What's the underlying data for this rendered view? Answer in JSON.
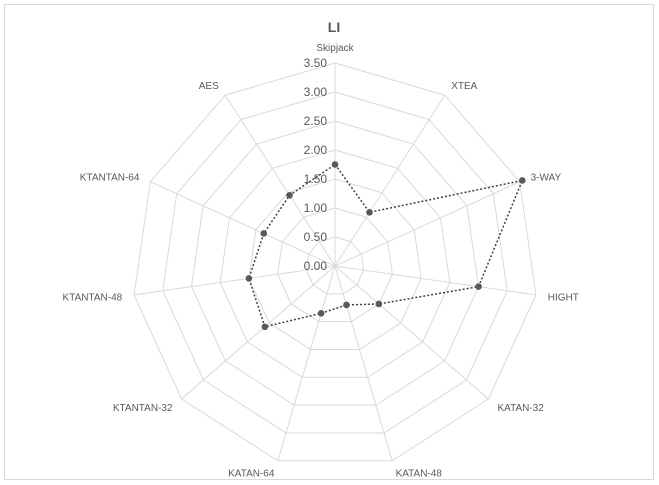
{
  "chart_data": {
    "type": "radar",
    "title": "LI",
    "categories": [
      "Skipjack",
      "XTEA",
      "3-WAY",
      "HIGHT",
      "KATAN-32",
      "KATAN-48",
      "KATAN-64",
      "KTANTAN-32",
      "KTANTAN-48",
      "KTANTAN-64",
      "AES"
    ],
    "series": [
      {
        "values": [
          1.75,
          1.1,
          3.55,
          2.5,
          1.0,
          0.7,
          0.85,
          1.6,
          1.5,
          1.35,
          1.45
        ]
      }
    ],
    "rlim": [
      0,
      3.5
    ],
    "ticks": [
      "0.00",
      "0.50",
      "1.00",
      "1.50",
      "2.00",
      "2.50",
      "3.00",
      "3.50"
    ],
    "tick_values": [
      0,
      0.5,
      1.0,
      1.5,
      2.0,
      2.5,
      3.0,
      3.5
    ],
    "series_color": "#404040",
    "grid_color": "#d9d9d9",
    "grid": true,
    "legend": "none"
  }
}
